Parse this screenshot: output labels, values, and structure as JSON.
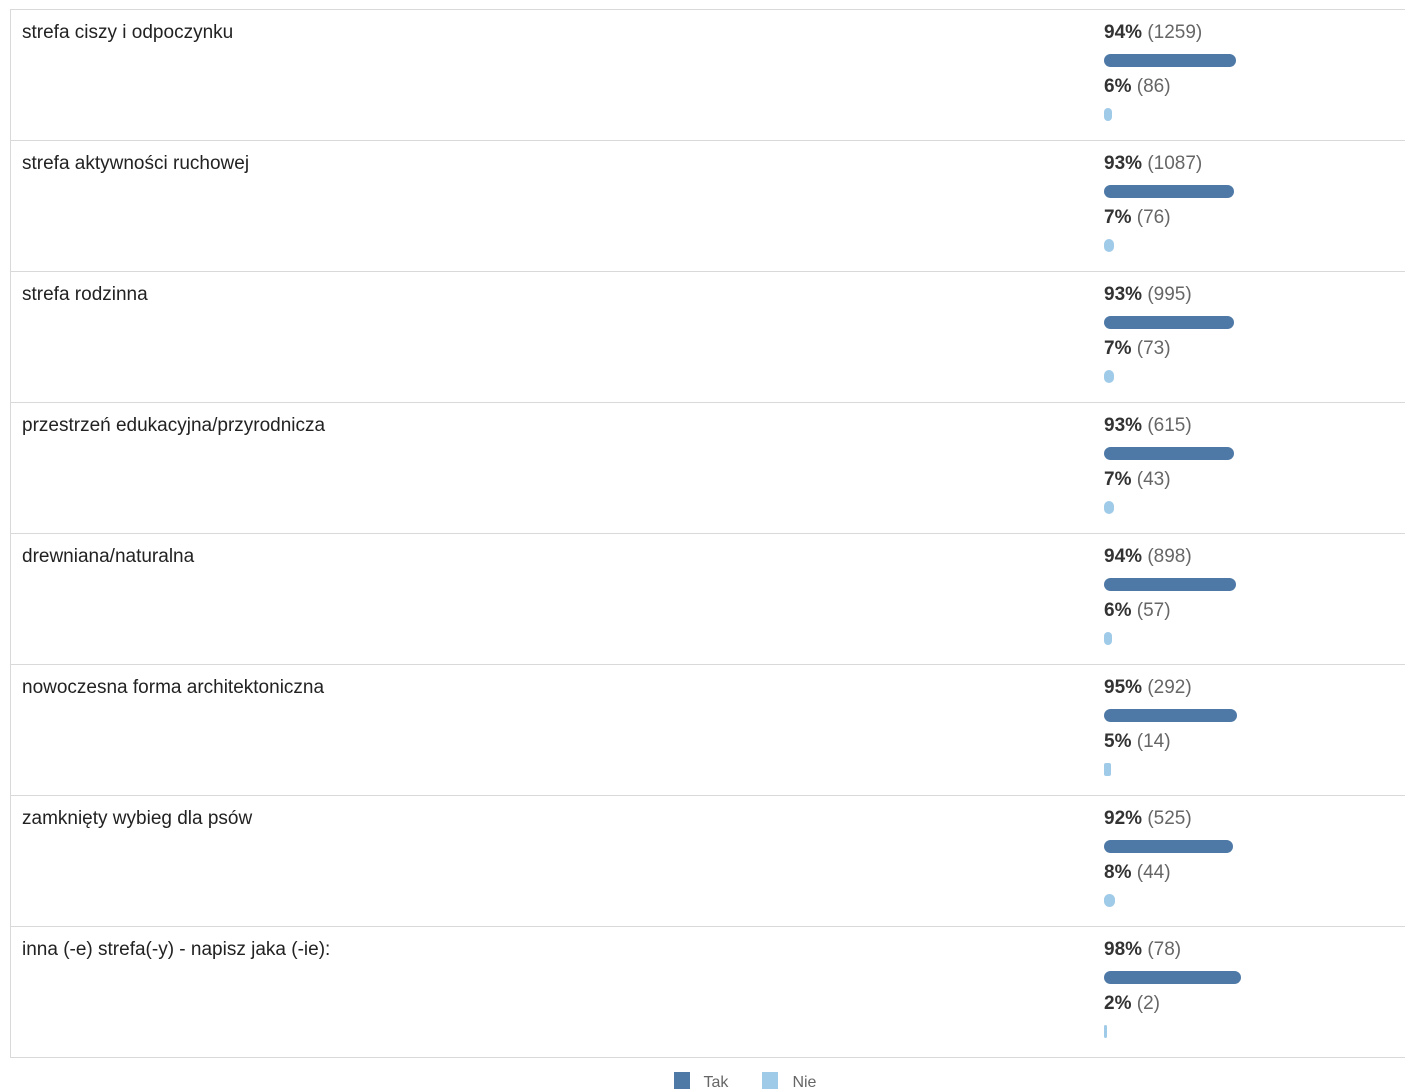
{
  "chart_data": {
    "type": "bar",
    "categories": [
      "strefa ciszy i odpoczynku",
      "strefa aktywności ruchowej",
      "strefa rodzinna",
      "przestrzeń edukacyjna/przyrodnicza",
      "drewniana/naturalna",
      "nowoczesna forma architektoniczna",
      "zamknięty wybieg dla psów",
      "inna (-e) strefa(-y) - napisz jaka (-ie):"
    ],
    "series": [
      {
        "name": "Tak",
        "color": "#4e79a7",
        "percent_labels": [
          "94%",
          "93%",
          "93%",
          "93%",
          "94%",
          "95%",
          "92%",
          "98%"
        ],
        "count_labels": [
          "(1259)",
          "(1087)",
          "(995)",
          "(615)",
          "(898)",
          "(292)",
          "(525)",
          "(78)"
        ],
        "values": [
          94,
          93,
          93,
          93,
          94,
          95,
          92,
          98
        ]
      },
      {
        "name": "Nie",
        "color": "#a0cbe8",
        "percent_labels": [
          "6%",
          "7%",
          "7%",
          "7%",
          "6%",
          "5%",
          "8%",
          "2%"
        ],
        "count_labels": [
          "(86)",
          "(76)",
          "(73)",
          "(43)",
          "(57)",
          "(14)",
          "(44)",
          "(2)"
        ],
        "values": [
          6,
          7,
          7,
          7,
          6,
          5,
          8,
          2
        ]
      }
    ],
    "xlim": [
      0,
      100
    ],
    "legend": "bottom-center"
  }
}
